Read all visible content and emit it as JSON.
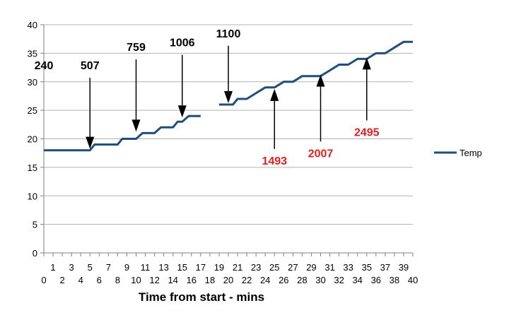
{
  "chart_data": {
    "type": "line",
    "xlabel": "Time from start - mins",
    "ylabel": "",
    "xlim": [
      0,
      40
    ],
    "ylim": [
      0,
      40
    ],
    "y_ticks": [
      0,
      5,
      10,
      15,
      20,
      25,
      30,
      35,
      40
    ],
    "x_ticks_upper": [
      1,
      3,
      5,
      7,
      9,
      11,
      13,
      15,
      17,
      19,
      21,
      23,
      25,
      27,
      29,
      31,
      33,
      35,
      37,
      39
    ],
    "x_ticks_lower": [
      0,
      2,
      4,
      6,
      8,
      10,
      12,
      14,
      16,
      18,
      20,
      22,
      24,
      26,
      28,
      30,
      32,
      34,
      36,
      38,
      40
    ],
    "grid": true,
    "legend": {
      "position": "right",
      "entries": [
        "Temp"
      ]
    },
    "colors": {
      "series": "#1f4e79",
      "annotation_black": "#000000",
      "annotation_red": "#e02020",
      "grid": "#b3b3b3"
    },
    "series": [
      {
        "name": "Temp",
        "segments": [
          [
            [
              0,
              18
            ],
            [
              1,
              18
            ],
            [
              2,
              18
            ],
            [
              3,
              18
            ],
            [
              4,
              18
            ],
            [
              5,
              18
            ],
            [
              5.5,
              19
            ],
            [
              6,
              19
            ],
            [
              7,
              19
            ],
            [
              8,
              19
            ],
            [
              8.5,
              20
            ],
            [
              9,
              20
            ],
            [
              10,
              20
            ],
            [
              10.7,
              21
            ],
            [
              11,
              21
            ],
            [
              12,
              21
            ],
            [
              12.7,
              22
            ],
            [
              13,
              22
            ],
            [
              14,
              22
            ],
            [
              14.5,
              23
            ],
            [
              15,
              23
            ],
            [
              15.7,
              24
            ],
            [
              16,
              24
            ],
            [
              17,
              24
            ]
          ],
          [
            [
              19,
              26
            ],
            [
              20,
              26
            ],
            [
              20.5,
              26
            ],
            [
              21,
              27
            ],
            [
              22,
              27
            ],
            [
              23,
              28
            ],
            [
              24,
              29
            ],
            [
              25,
              29
            ],
            [
              26,
              30
            ],
            [
              27,
              30
            ],
            [
              28,
              31
            ],
            [
              29,
              31
            ],
            [
              30,
              31
            ],
            [
              31,
              32
            ],
            [
              32,
              33
            ],
            [
              33,
              33
            ],
            [
              34,
              34
            ],
            [
              35,
              34
            ],
            [
              36,
              35
            ],
            [
              37,
              35
            ],
            [
              38,
              36
            ],
            [
              39,
              37
            ],
            [
              40,
              37
            ]
          ]
        ]
      }
    ],
    "annotations": [
      {
        "label": "240",
        "x": 0,
        "y": 18,
        "color": "black",
        "arrow": false,
        "label_y": 32.2
      },
      {
        "label": "507",
        "x": 5,
        "y": 18,
        "color": "black",
        "arrow": "down",
        "label_y": 32.2
      },
      {
        "label": "759",
        "x": 10,
        "y": 21,
        "color": "black",
        "arrow": "down",
        "label_y": 35.4
      },
      {
        "label": "1006",
        "x": 15,
        "y": 23.5,
        "color": "black",
        "arrow": "down",
        "label_y": 36.2
      },
      {
        "label": "1100",
        "x": 20,
        "y": 26,
        "color": "black",
        "arrow": "down",
        "label_y": 37.8
      },
      {
        "label": "1493",
        "x": 25,
        "y": 29,
        "color": "red",
        "arrow": "up",
        "label_y": 15.5
      },
      {
        "label": "2007",
        "x": 30,
        "y": 31.5,
        "color": "red",
        "arrow": "up",
        "label_y": 16.8
      },
      {
        "label": "2495",
        "x": 35,
        "y": 34.5,
        "color": "red",
        "arrow": "up",
        "label_y": 20.5
      }
    ]
  }
}
